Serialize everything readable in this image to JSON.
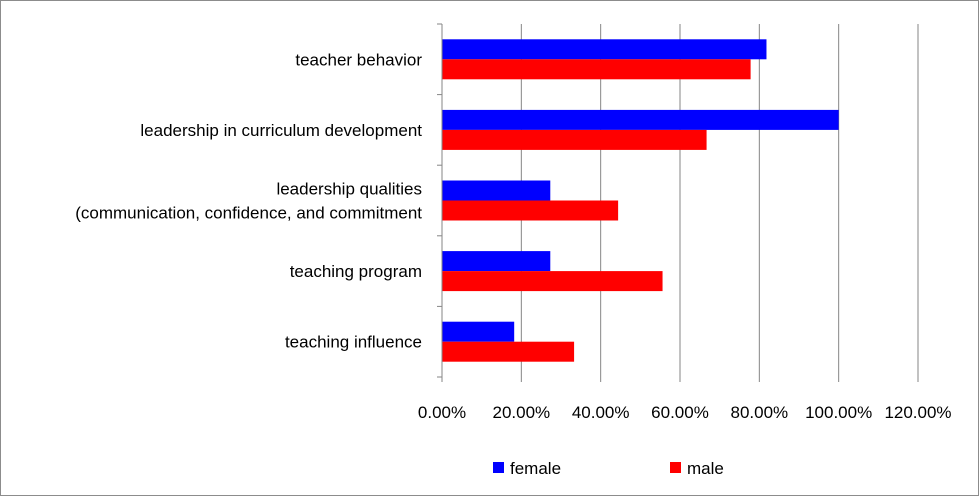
{
  "chart_data": {
    "type": "bar",
    "orientation": "horizontal",
    "title": "",
    "xlabel": "",
    "ylabel": "",
    "categories": [
      [
        "teacher behavior"
      ],
      [
        "leadership in curriculum development"
      ],
      [
        "leadership qualities",
        "(communication, confidence, and commitment"
      ],
      [
        "teaching program"
      ],
      [
        "teaching influence"
      ]
    ],
    "series": [
      {
        "name": "female",
        "color": "#0000ff",
        "values": [
          0.818,
          1.0,
          0.273,
          0.273,
          0.182
        ]
      },
      {
        "name": "male",
        "color": "#ff0000",
        "values": [
          0.778,
          0.667,
          0.444,
          0.556,
          0.333
        ]
      }
    ],
    "xlim": [
      0,
      1.2
    ],
    "x_ticks": [
      0,
      0.2,
      0.4,
      0.6,
      0.8,
      1.0,
      1.2
    ],
    "x_tick_labels": [
      "0.00%",
      "20.00%",
      "40.00%",
      "60.00%",
      "80.00%",
      "100.00%",
      "120.00%"
    ],
    "grid": "vertical",
    "legend_position": "bottom"
  }
}
